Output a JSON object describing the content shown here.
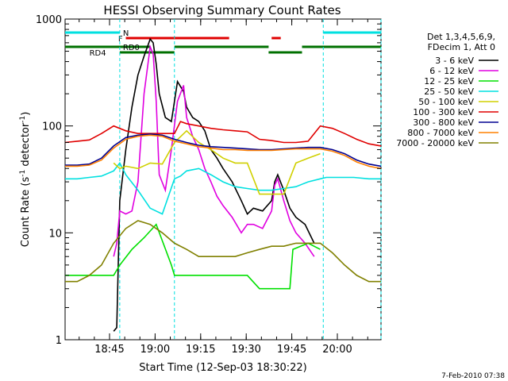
{
  "chart_data": {
    "type": "line",
    "title": "HESSI Observing Summary Count Rates",
    "xlabel": "Start Time (12-Sep-03 18:30:22)",
    "ylabel_parts": [
      "Count Rate (s",
      "-1",
      " detector",
      "-1",
      ")"
    ],
    "yscale": "log",
    "ylim": [
      1,
      1000
    ],
    "xlim_minutes": [
      0,
      104
    ],
    "x_ticks": [
      {
        "label": "18:45",
        "t": 14.63
      },
      {
        "label": "19:00",
        "t": 29.63
      },
      {
        "label": "19:15",
        "t": 44.63
      },
      {
        "label": "19:30",
        "t": 59.63
      },
      {
        "label": "19:45",
        "t": 74.63
      },
      {
        "label": "20:00",
        "t": 89.63
      }
    ],
    "y_ticks": [
      {
        "label": "1",
        "v": 1
      },
      {
        "label": "10",
        "v": 10
      },
      {
        "label": "100",
        "v": 100
      },
      {
        "label": "1000",
        "v": 1000
      }
    ],
    "legend_header": [
      "Det 1,3,4,5,6,9,",
      "FDecim 1, Att 0"
    ],
    "legend_placement": "right",
    "timestamp": "7-Feb-2010 07:38",
    "flags": [
      {
        "label": "N",
        "color": "#00e0e0",
        "segments": [
          [
            0,
            18
          ],
          [
            85,
            104
          ]
        ]
      },
      {
        "label": "F",
        "color": "#e00000",
        "segments": [
          [
            20,
            54
          ],
          [
            68,
            71
          ]
        ]
      },
      {
        "label": "RD0",
        "color": "#007000",
        "segments": [
          [
            0,
            28
          ],
          [
            36,
            67
          ],
          [
            78,
            104
          ]
        ]
      },
      {
        "label": "RD4",
        "color": "#007000",
        "segments": [
          [
            18,
            36
          ],
          [
            67,
            78
          ]
        ]
      }
    ],
    "night_lines": [
      18,
      36,
      85,
      104
    ],
    "series": [
      {
        "name": "3 - 6 keV",
        "color": "#000000",
        "x": [
          16,
          17,
          18,
          20,
          22,
          24,
          26,
          28,
          29,
          30,
          31,
          33,
          35,
          37,
          39,
          40,
          42,
          44,
          46,
          48,
          50,
          52,
          55,
          58,
          60,
          62,
          65,
          68,
          69,
          70,
          72,
          74,
          76,
          79,
          82
        ],
        "y": [
          1.2,
          1.3,
          20,
          60,
          150,
          300,
          450,
          650,
          600,
          380,
          200,
          120,
          110,
          260,
          210,
          150,
          120,
          110,
          90,
          60,
          50,
          40,
          30,
          20,
          15,
          17,
          16,
          20,
          30,
          35,
          25,
          17,
          14,
          12,
          8
        ]
      },
      {
        "name": "6 - 12 keV",
        "color": "#e000e0",
        "x": [
          16,
          17,
          18,
          20,
          22,
          24,
          26,
          28,
          29,
          30,
          31,
          33,
          35,
          37,
          39,
          40,
          42,
          44,
          46,
          48,
          50,
          52,
          55,
          58,
          60,
          62,
          65,
          68,
          69,
          70,
          72,
          74,
          76,
          79,
          82
        ],
        "y": [
          6,
          8,
          16,
          15,
          16,
          30,
          200,
          550,
          470,
          170,
          35,
          25,
          60,
          170,
          240,
          120,
          80,
          60,
          40,
          30,
          22,
          18,
          14,
          10,
          12,
          12,
          11,
          16,
          28,
          32,
          20,
          13,
          10,
          8,
          6
        ]
      },
      {
        "name": "12 - 25 keV",
        "color": "#00e000",
        "x": [
          0,
          4,
          8,
          12,
          16,
          18,
          22,
          26,
          30,
          35,
          36,
          40,
          45,
          50,
          55,
          60,
          64,
          65,
          70,
          74,
          75,
          80,
          84
        ],
        "y": [
          4,
          4,
          4,
          4,
          4,
          5,
          7,
          9,
          12,
          5,
          4,
          4,
          4,
          4,
          4,
          4,
          3,
          3,
          3,
          3,
          7,
          8,
          7
        ]
      },
      {
        "name": "25 - 50 keV",
        "color": "#00e0e0",
        "x": [
          0,
          4,
          8,
          12,
          16,
          18,
          20,
          24,
          28,
          32,
          36,
          38,
          40,
          44,
          48,
          52,
          56,
          60,
          64,
          68,
          72,
          76,
          80,
          84,
          86,
          90,
          95,
          100,
          104
        ],
        "y": [
          32,
          32,
          33,
          34,
          38,
          45,
          35,
          25,
          17,
          15,
          32,
          34,
          38,
          40,
          35,
          30,
          27,
          26,
          25,
          25,
          26,
          27,
          30,
          32,
          33,
          33,
          33,
          32,
          32
        ]
      },
      {
        "name": "50 - 100 keV",
        "color": "#d0d000",
        "x": [
          16,
          18,
          20,
          24,
          28,
          32,
          36,
          40,
          44,
          48,
          52,
          56,
          60,
          64,
          68,
          72,
          76,
          80,
          84
        ],
        "y": [
          45,
          40,
          42,
          40,
          45,
          44,
          70,
          90,
          70,
          60,
          50,
          45,
          45,
          23,
          23,
          23,
          45,
          50,
          55
        ]
      },
      {
        "name": "100 - 300 keV",
        "color": "#e00000",
        "x": [
          0,
          4,
          8,
          12,
          16,
          20,
          24,
          28,
          32,
          36,
          38,
          40,
          44,
          48,
          52,
          56,
          60,
          64,
          68,
          72,
          76,
          80,
          84,
          88,
          92,
          96,
          100,
          104
        ],
        "y": [
          70,
          72,
          74,
          85,
          100,
          90,
          85,
          85,
          85,
          85,
          110,
          105,
          100,
          95,
          92,
          90,
          88,
          75,
          73,
          70,
          70,
          72,
          100,
          95,
          85,
          75,
          68,
          65
        ]
      },
      {
        "name": "300 - 800 keV",
        "color": "#000090",
        "x": [
          0,
          4,
          8,
          12,
          16,
          20,
          24,
          28,
          32,
          36,
          40,
          44,
          48,
          52,
          56,
          60,
          64,
          68,
          72,
          76,
          80,
          84,
          88,
          92,
          96,
          100,
          104
        ],
        "y": [
          43,
          43,
          44,
          50,
          65,
          78,
          82,
          84,
          82,
          75,
          70,
          66,
          64,
          63,
          62,
          61,
          60,
          60,
          61,
          62,
          63,
          63,
          60,
          55,
          48,
          44,
          42
        ]
      },
      {
        "name": "800 - 7000 keV",
        "color": "#ff8000",
        "x": [
          0,
          4,
          8,
          12,
          16,
          20,
          24,
          28,
          32,
          36,
          40,
          44,
          48,
          52,
          56,
          60,
          64,
          68,
          72,
          76,
          80,
          84,
          88,
          92,
          96,
          100,
          104
        ],
        "y": [
          42,
          42,
          43,
          48,
          62,
          75,
          80,
          82,
          80,
          72,
          68,
          64,
          62,
          60,
          60,
          59,
          59,
          59,
          60,
          61,
          61,
          61,
          58,
          53,
          46,
          42,
          40
        ]
      },
      {
        "name": "7000 - 20000 keV",
        "color": "#808000",
        "x": [
          0,
          4,
          8,
          12,
          16,
          20,
          24,
          28,
          32,
          36,
          40,
          44,
          48,
          52,
          56,
          60,
          64,
          68,
          72,
          76,
          80,
          84,
          88,
          92,
          96,
          100,
          104
        ],
        "y": [
          3.5,
          3.5,
          4,
          5,
          8,
          11,
          13,
          12,
          10,
          8,
          7,
          6,
          6,
          6,
          6,
          6.5,
          7,
          7.5,
          7.5,
          8,
          8,
          8,
          6.5,
          5,
          4,
          3.5,
          3.5
        ]
      }
    ]
  }
}
